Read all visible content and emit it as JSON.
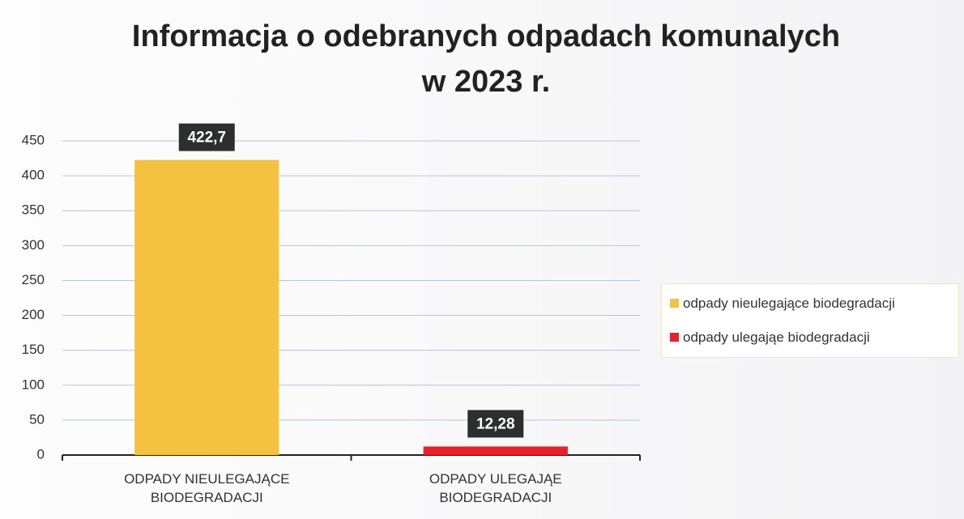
{
  "chart_data": {
    "type": "bar",
    "title": [
      "Informacja o odebranych odpadach komunalych",
      "w 2023 r."
    ],
    "categories": [
      "ODPADY NIEULEGAJĄCE BIODEGRADACJI",
      "ODPADY ULEGAJĄE BIODEGRADACJI"
    ],
    "series": [
      {
        "name": "odpady nieulegające biodegradacji",
        "color": "#f4c140",
        "values": [
          422.7,
          null
        ],
        "value_labels": [
          "422,7",
          null
        ]
      },
      {
        "name": "odpady ulegająe biodegradacji",
        "color": "#e8202a",
        "values": [
          null,
          12.28
        ],
        "value_labels": [
          null,
          "12,28"
        ]
      }
    ],
    "ylim": [
      0,
      450
    ],
    "yticks": [
      0,
      50,
      100,
      150,
      200,
      250,
      300,
      350,
      400,
      450
    ],
    "grid": true,
    "legend": "right"
  }
}
